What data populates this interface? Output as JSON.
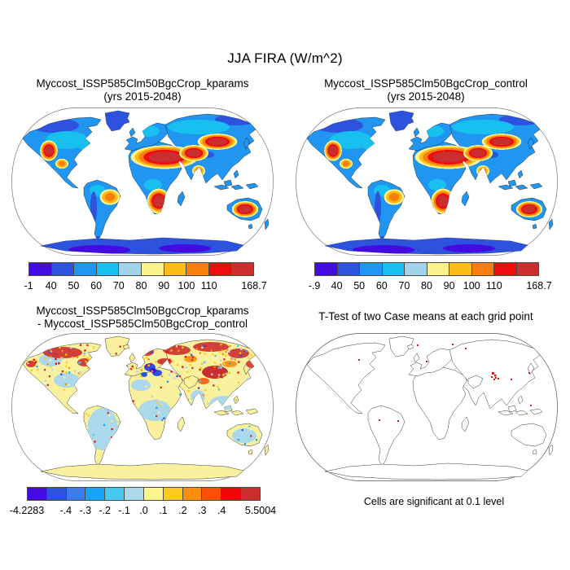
{
  "figure": {
    "title": "JJA FIRA (W/m^2)"
  },
  "palettes": {
    "heat10": [
      "#430be0",
      "#2c52de",
      "#2095f2",
      "#18c0f0",
      "#a3d3ea",
      "#fdf28c",
      "#fcbe16",
      "#fb7d0b",
      "#ee0c0c",
      "#cb2e2e"
    ],
    "diff12": [
      "#430be0",
      "#2c52de",
      "#3b7ce8",
      "#18a2f8",
      "#47c8f2",
      "#abd8ea",
      "#fdf48f",
      "#fcca1e",
      "#fb8e0d",
      "#fb4f08",
      "#ee0707",
      "#cb2e2e"
    ]
  },
  "panels": [
    {
      "title_line1": "Myccost_ISSP585Clm50BgcCrop_kparams",
      "title_line2": "(yrs 2015-2048)",
      "colorbar": {
        "palette": "heat10",
        "labels": [
          "-1",
          "40",
          "50",
          "60",
          "70",
          "80",
          "90",
          "100",
          "110",
          "168.7"
        ],
        "positions": [
          0,
          10,
          20,
          30,
          40,
          50,
          60,
          70,
          80,
          100
        ]
      }
    },
    {
      "title_line1": "Myccost_ISSP585Clm50BgcCrop_control",
      "title_line2": "(yrs 2015-2048)",
      "colorbar": {
        "palette": "heat10",
        "labels": [
          "-.9",
          "40",
          "50",
          "60",
          "70",
          "80",
          "90",
          "100",
          "110",
          "168.7"
        ],
        "positions": [
          0,
          10,
          20,
          30,
          40,
          50,
          60,
          70,
          80,
          100
        ]
      }
    },
    {
      "title_line1": "Myccost_ISSP585Clm50BgcCrop_kparams",
      "title_line2": "- Myccost_ISSP585Clm50BgcCrop_control",
      "colorbar": {
        "palette": "diff12",
        "labels": [
          "-4.2283",
          "-.4",
          "-.3",
          "-.2",
          "-.1",
          ".0",
          ".1",
          ".2",
          ".3",
          ".4",
          "5.5004"
        ],
        "positions": [
          0,
          16.67,
          25,
          33.33,
          41.67,
          50,
          58.33,
          66.67,
          75,
          83.33,
          100
        ]
      }
    },
    {
      "title_line1": "T-Test of two Case means at each grid point",
      "title_line2": "",
      "caption": "Cells are significant at 0.1 level"
    }
  ],
  "chart_data": [
    {
      "type": "heatmap",
      "projection": "Robinson world map",
      "title": "Myccost_ISSP585Clm50BgcCrop_kparams (yrs 2015-2048)",
      "variable": "JJA FIRA",
      "units": "W/m^2",
      "data_min": -1,
      "data_max": 168.7,
      "colorbar_ticks": [
        -1,
        40,
        50,
        60,
        70,
        80,
        90,
        100,
        110,
        168.7
      ],
      "legend_position": "below map",
      "high_value_regions": [
        "Sahara and Middle East",
        "Central Asia",
        "southern Africa",
        "central Australia",
        "southwestern North America",
        "eastern Brazil"
      ],
      "low_value_regions": [
        "Greenland",
        "boreal North America and Siberia",
        "Antarctica",
        "tropical rainforest belts"
      ]
    },
    {
      "type": "heatmap",
      "projection": "Robinson world map",
      "title": "Myccost_ISSP585Clm50BgcCrop_control (yrs 2015-2048)",
      "variable": "JJA FIRA",
      "units": "W/m^2",
      "data_min": -0.9,
      "data_max": 168.7,
      "colorbar_ticks": [
        -0.9,
        40,
        50,
        60,
        70,
        80,
        90,
        100,
        110,
        168.7
      ],
      "legend_position": "below map",
      "high_value_regions": [
        "Sahara and Middle East",
        "Central Asia",
        "southern Africa",
        "central Australia",
        "southwestern North America",
        "eastern Brazil"
      ],
      "low_value_regions": [
        "Greenland",
        "boreal North America and Siberia",
        "Antarctica",
        "tropical rainforest belts"
      ]
    },
    {
      "type": "heatmap",
      "projection": "Robinson world map",
      "title": "Myccost_ISSP585Clm50BgcCrop_kparams - Myccost_ISSP585Clm50BgcCrop_control",
      "variable": "JJA FIRA difference",
      "units": "W/m^2",
      "data_min": -4.2283,
      "data_max": 5.5004,
      "colorbar_ticks": [
        -4.2283,
        -0.4,
        -0.3,
        -0.2,
        -0.1,
        0.0,
        0.1,
        0.2,
        0.3,
        0.4,
        5.5004
      ],
      "legend_position": "below map",
      "description": "Mostly small scattered differences (pale yellow / light blue speckle); strongest positive patches over boreal North America, northern Eurasia and Mongolia/western China; negative (blue) band over central Europe"
    },
    {
      "type": "map",
      "projection": "Robinson world map",
      "title": "T-Test of two Case means at each grid point",
      "note": "Cells are significant at 0.1 level",
      "significant_regions": [
        "small red cluster over the Tibetan Plateau / western China",
        "isolated single grid cells on various coasts"
      ]
    }
  ]
}
